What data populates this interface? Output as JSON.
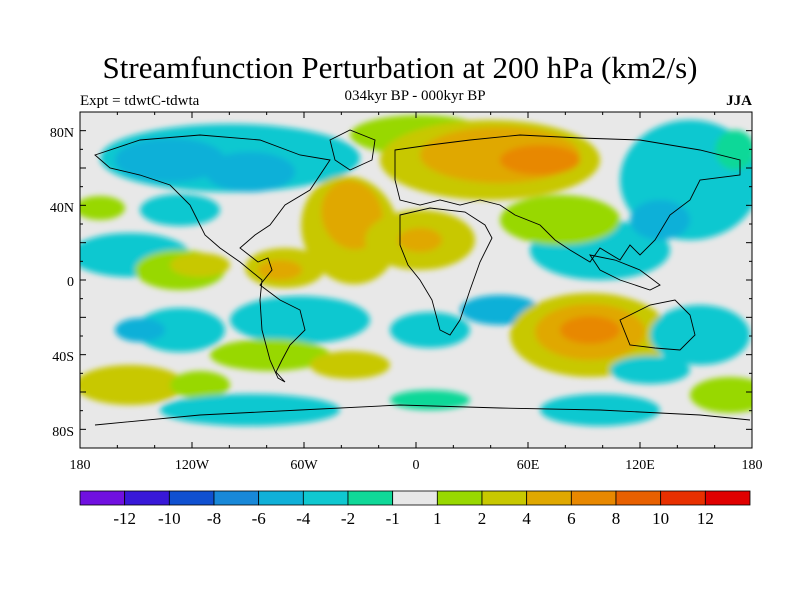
{
  "header": {
    "title": "Streamfunction Perturbation at 200 hPa (km2/s)",
    "subtitle": "034kyr BP - 000kyr BP",
    "left_label": "Expt = tdwtC-tdwta",
    "right_label": "JJA"
  },
  "map": {
    "lon_range": [
      -180,
      180
    ],
    "lat_range": [
      -90,
      90
    ],
    "lat_tick_labels": [
      "80N",
      "40N",
      "0",
      "40S",
      "80S"
    ],
    "lon_tick_labels": [
      "180",
      "120W",
      "60W",
      "0",
      "60E",
      "120E",
      "180"
    ],
    "background_color": "#e8e8e8"
  },
  "colorbar": {
    "levels": [
      "-12",
      "-10",
      "-8",
      "-6",
      "-4",
      "-2",
      "-1",
      "1",
      "2",
      "4",
      "6",
      "8",
      "10",
      "12"
    ],
    "colors": [
      "#7010e0",
      "#3818d8",
      "#1050d0",
      "#1888d8",
      "#10b0d8",
      "#10c8d0",
      "#10d898",
      "#e8e8e8",
      "#98d800",
      "#c8c800",
      "#e0a800",
      "#e88800",
      "#e86000",
      "#e83000",
      "#e00000"
    ]
  }
}
